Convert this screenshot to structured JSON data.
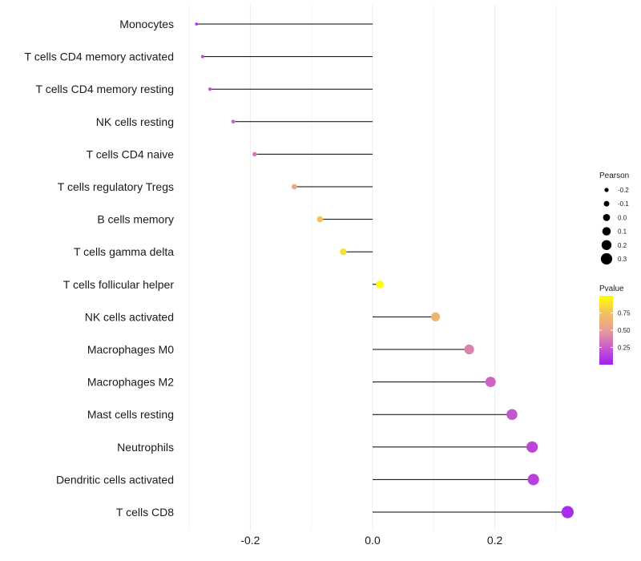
{
  "chart_data": {
    "type": "lollipop",
    "categories": [
      "Monocytes",
      "T cells CD4 memory activated",
      "T cells CD4 memory resting",
      "NK cells resting",
      "T cells CD4 naive",
      "T cells regulatory  Tregs ",
      "B cells memory",
      "T cells gamma delta",
      "T cells follicular helper",
      "NK cells activated",
      "Macrophages M0",
      "Macrophages M2",
      "Mast cells resting",
      "Neutrophils",
      "Dendritic cells activated",
      "T cells CD8"
    ],
    "values": [
      -0.288,
      -0.278,
      -0.266,
      -0.228,
      -0.193,
      -0.128,
      -0.086,
      -0.048,
      0.012,
      0.103,
      0.158,
      0.193,
      0.228,
      0.261,
      0.263,
      0.319
    ],
    "pvalues": [
      0.12,
      0.16,
      0.2,
      0.3,
      0.36,
      0.58,
      0.74,
      0.88,
      0.99,
      0.66,
      0.4,
      0.28,
      0.22,
      0.16,
      0.14,
      0.05
    ],
    "xlim": [
      -0.3,
      0.33
    ],
    "xticks": [
      -0.2,
      0.0,
      0.2
    ],
    "xtick_labels": [
      "-0.2",
      "0.0",
      "0.2"
    ],
    "xlabel": "",
    "ylabel": "",
    "title": "",
    "grid": true,
    "legend_size": {
      "title": "Pearson",
      "labels": [
        "-0.2",
        "-0.1",
        "0.0",
        "0.1",
        "0.2",
        "0.3"
      ],
      "values": [
        -0.2,
        -0.1,
        0.0,
        0.1,
        0.2,
        0.3
      ]
    },
    "legend_color": {
      "title": "Pvalue",
      "labels": [
        "0.75",
        "0.50",
        "0.25"
      ],
      "values": [
        0.75,
        0.5,
        0.25
      ],
      "range": [
        0.0,
        1.0
      ],
      "colors": [
        "#a020f0",
        "#c85ccc",
        "#e99d99",
        "#f5c060",
        "#ffff00"
      ]
    },
    "placement": "right"
  }
}
